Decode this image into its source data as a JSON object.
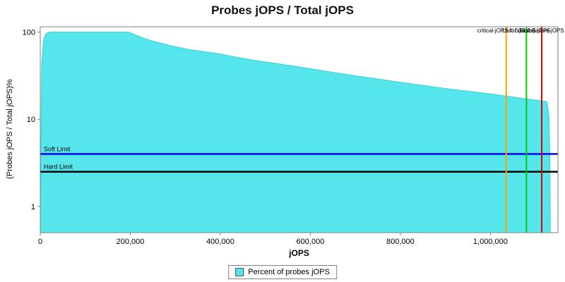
{
  "chart_data": {
    "type": "area",
    "title": "Probes jOPS / Total jOPS",
    "xlabel": "jOPS",
    "ylabel": "(Probes jOPS / Total jOPS)%",
    "x_range": [
      0,
      1150000
    ],
    "y_range": [
      0.5,
      115
    ],
    "y_scale": "log",
    "grid": false,
    "x_tick_values": [
      0,
      200000,
      400000,
      600000,
      800000,
      1000000
    ],
    "x_tick_labels": [
      "0",
      "200,000",
      "400,000",
      "600,000",
      "800,000",
      "1,000,000"
    ],
    "y_tick_values": [
      1,
      10,
      100
    ],
    "y_tick_labels": [
      "1",
      "10",
      "100"
    ],
    "series": [
      {
        "name": "Percent of probes jOPS",
        "color": "#55e6ec",
        "points": [
          [
            0,
            0.6
          ],
          [
            3000,
            40
          ],
          [
            6000,
            70
          ],
          [
            9000,
            88
          ],
          [
            13000,
            96
          ],
          [
            20000,
            99.5
          ],
          [
            30000,
            100
          ],
          [
            195000,
            100
          ],
          [
            205000,
            96
          ],
          [
            215000,
            91
          ],
          [
            230000,
            85
          ],
          [
            250000,
            79
          ],
          [
            275000,
            73
          ],
          [
            300000,
            68
          ],
          [
            330000,
            63
          ],
          [
            360000,
            60
          ],
          [
            400000,
            56
          ],
          [
            440000,
            51
          ],
          [
            480000,
            47
          ],
          [
            520000,
            44
          ],
          [
            560000,
            41
          ],
          [
            600000,
            38
          ],
          [
            650000,
            34.5
          ],
          [
            700000,
            31.5
          ],
          [
            750000,
            29
          ],
          [
            800000,
            26.5
          ],
          [
            850000,
            24.5
          ],
          [
            900000,
            22.5
          ],
          [
            950000,
            21
          ],
          [
            1000000,
            19.5
          ],
          [
            1040000,
            18.3
          ],
          [
            1075000,
            17.3
          ],
          [
            1100000,
            16.6
          ],
          [
            1118000,
            16.2
          ],
          [
            1126000,
            15.8
          ],
          [
            1130000,
            11
          ],
          [
            1132000,
            4
          ],
          [
            1133000,
            0.6
          ]
        ]
      }
    ],
    "h_markers": [
      {
        "label": "Soft Limit",
        "value": 4,
        "color": "#0000ee"
      },
      {
        "label": "Hard Limit",
        "value": 2.5,
        "color": "#000000"
      }
    ],
    "v_markers": [
      {
        "label": "critical-jOPS for (SLAs)",
        "value": 1035000,
        "color": "#ffa500"
      },
      {
        "label": "Last Success jOPS",
        "value": 1080000,
        "color": "#00cc00"
      },
      {
        "label": "First Failure jOPS",
        "value": 1114000,
        "color": "#dd0000"
      }
    ],
    "legend": {
      "position": "bottom",
      "items": [
        {
          "label": "Percent of probes jOPS",
          "color": "#55e6ec"
        }
      ]
    }
  }
}
